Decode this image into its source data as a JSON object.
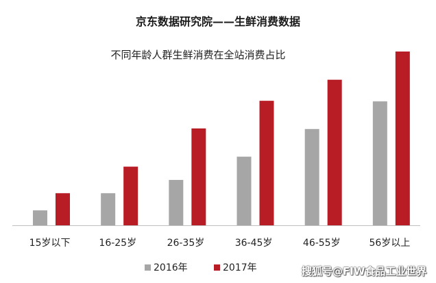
{
  "title": "京东数据研究院——生鲜消费数据",
  "watermark": "搜狐号@FIW食品工业世界",
  "chart_data": {
    "type": "bar",
    "title": "不同年龄人群生鲜消费在全站消费占比",
    "categories": [
      "15岁以下",
      "16-25岁",
      "26-35岁",
      "36-45岁",
      "46-55岁",
      "56岁以上"
    ],
    "series": [
      {
        "name": "2016年",
        "color": "#a6a6a6",
        "values": [
          2.7,
          5.8,
          8.2,
          12.4,
          17.4,
          22.4
        ]
      },
      {
        "name": "2017年",
        "color": "#b81c25",
        "values": [
          5.8,
          10.6,
          17.5,
          22.5,
          26.3,
          31.4
        ]
      }
    ],
    "xlabel": "",
    "ylabel": "",
    "ylim": [
      0,
      35
    ],
    "grid": false,
    "legend": "bottom"
  }
}
